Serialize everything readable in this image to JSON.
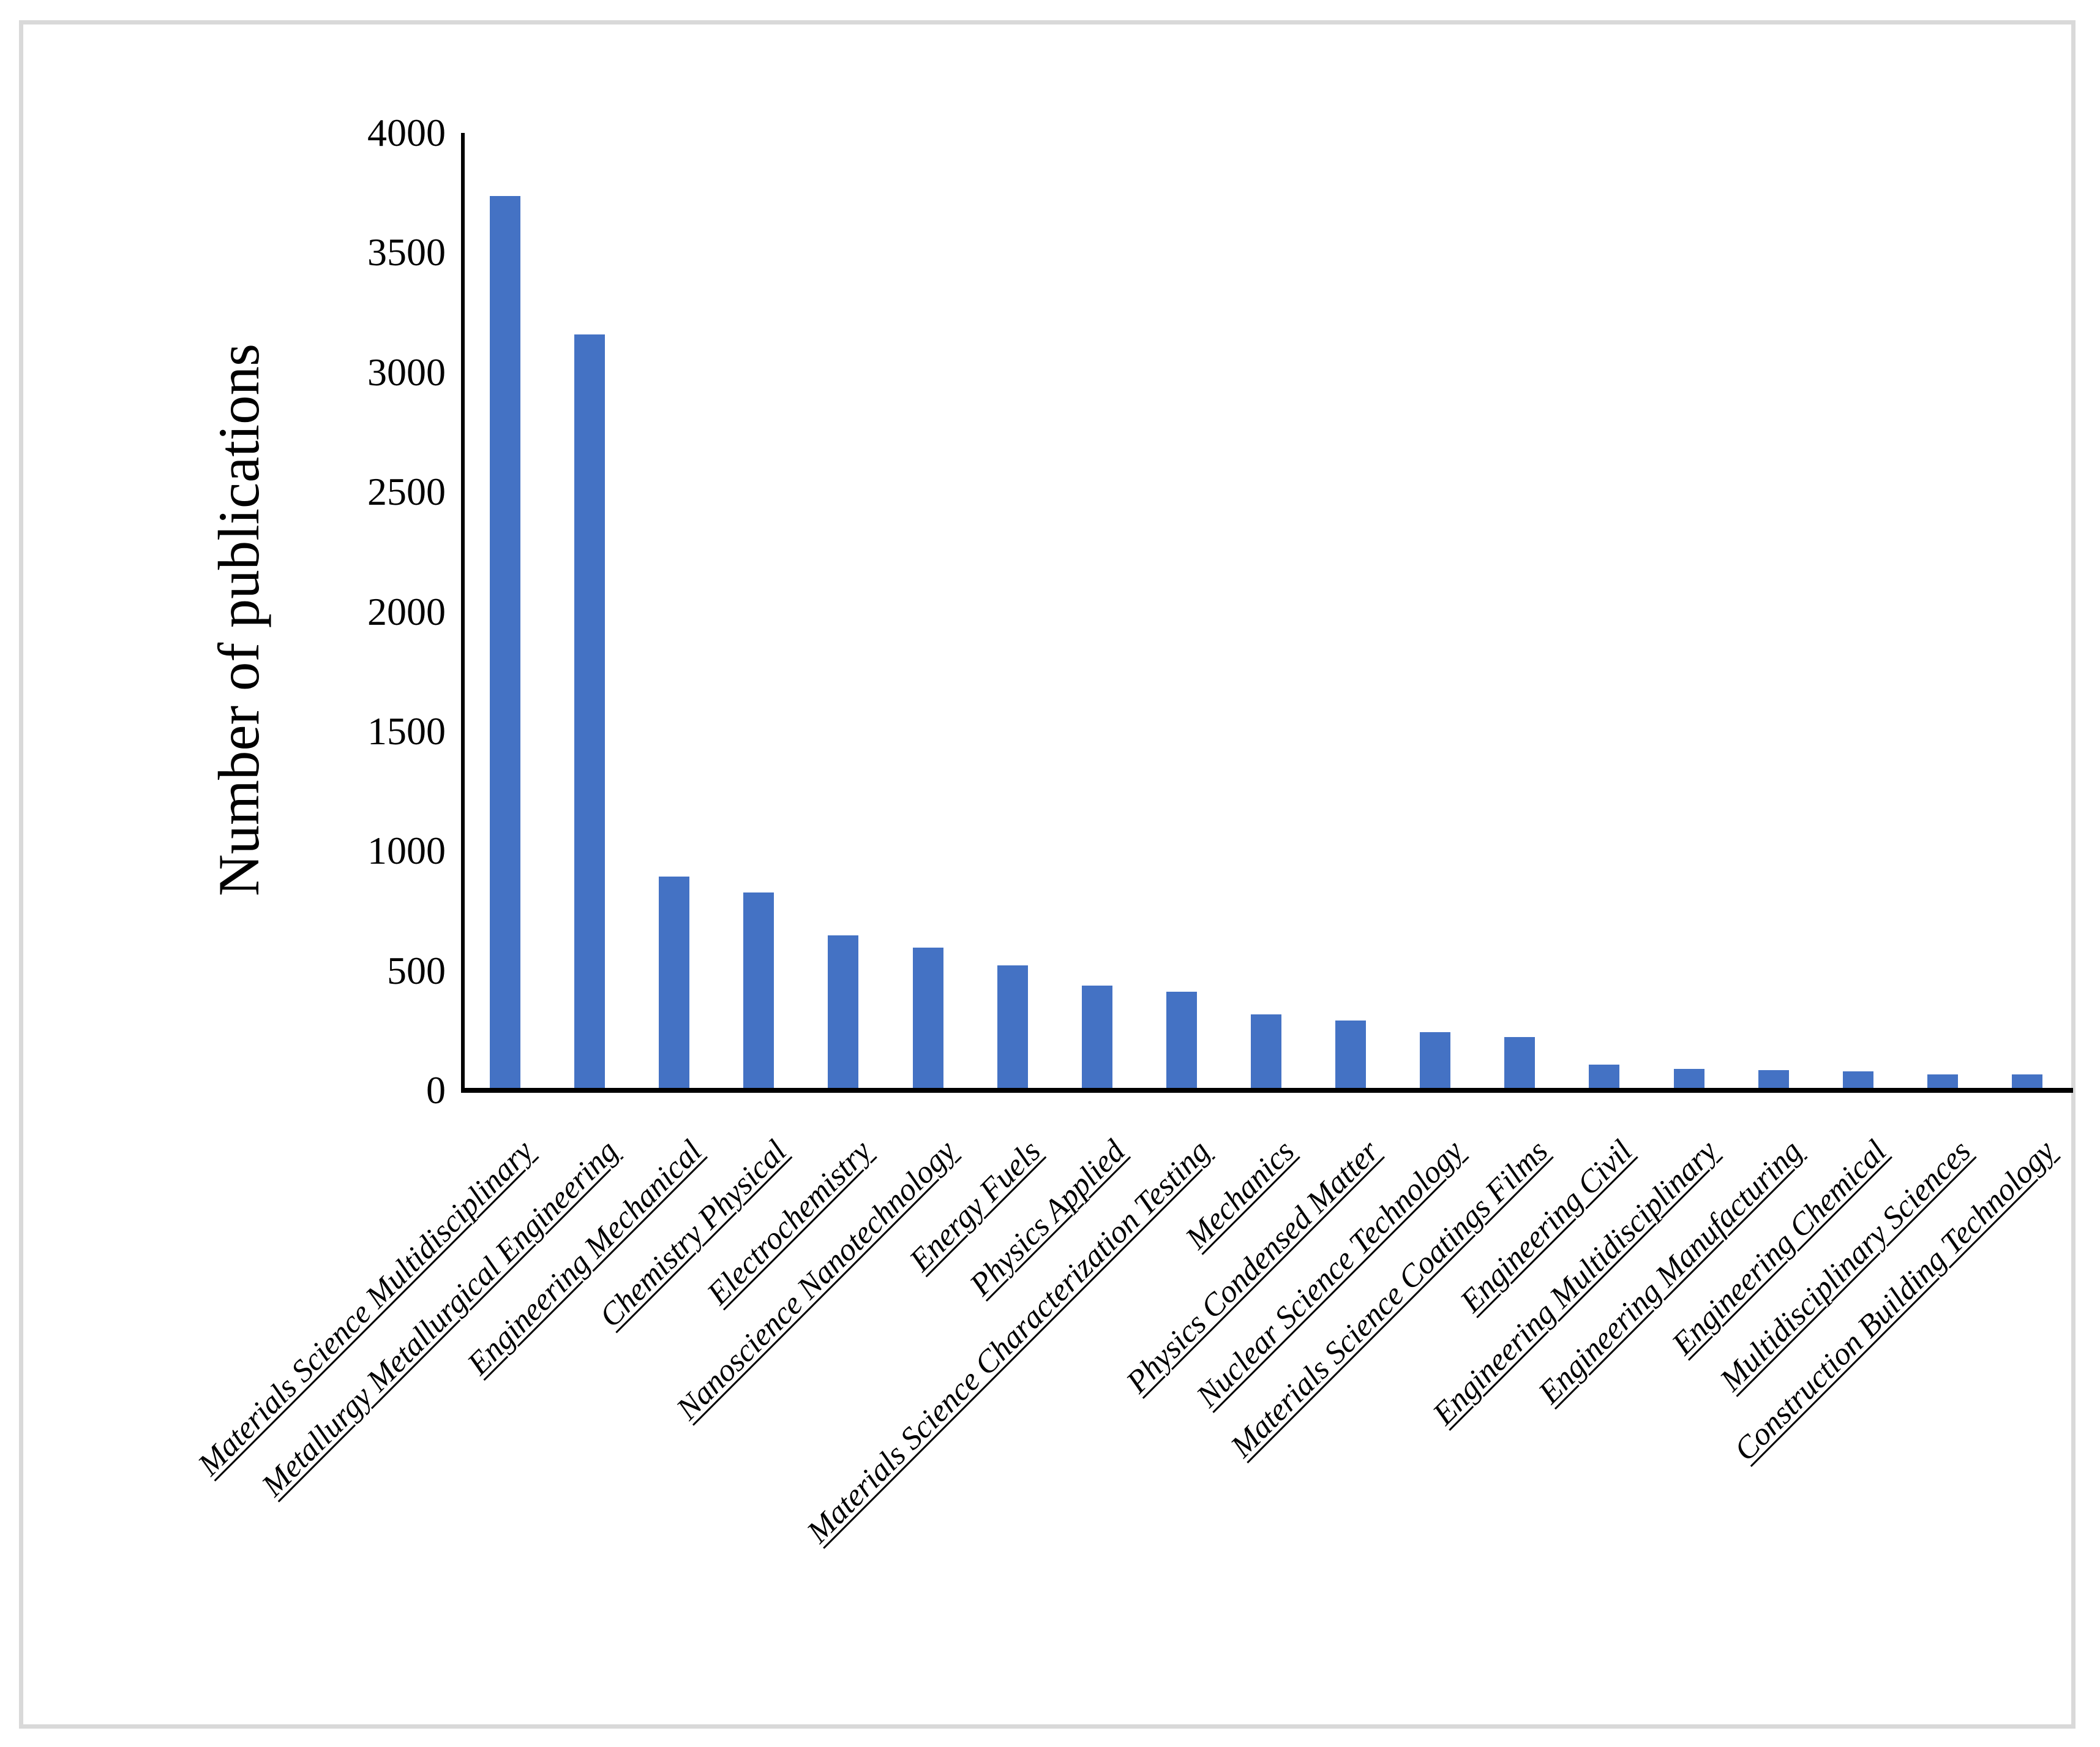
{
  "chart_data": {
    "type": "bar",
    "title": "",
    "xlabel": "",
    "ylabel": "Number of publications",
    "ylim": [
      0,
      4000
    ],
    "ytick_interval": 500,
    "ytick_labels": [
      "0",
      "500",
      "1000",
      "1500",
      "2000",
      "2500",
      "3000",
      "3500",
      "4000"
    ],
    "grid": "off",
    "legend": "none",
    "bar_color": "#4472C4",
    "axis_color": "#000000",
    "frame_color": "#d9d9d9",
    "categories": [
      "Materials Science Multidisciplinary",
      "Metallurgy Metallurgical Engineering",
      "Engineering Mechanical",
      "Chemistry Physical",
      "Electrochemistry",
      "Nanoscience Nanotechnology",
      "Energy Fuels",
      "Physics Applied",
      "Materials Science Characterization Testing",
      "Mechanics",
      "Physics Condensed Matter",
      "Nuclear Science Technology",
      "Materials Science Coatings Films",
      "Engineering Civil",
      "Engineering Multidisciplinary",
      "Engineering Manufacturing",
      "Engineering Chemical",
      "Multidisciplinary Sciences",
      "Construction Building Technology"
    ],
    "values": [
      3735,
      3155,
      890,
      825,
      645,
      595,
      520,
      435,
      410,
      315,
      290,
      240,
      220,
      105,
      88,
      82,
      77,
      65,
      63
    ]
  }
}
